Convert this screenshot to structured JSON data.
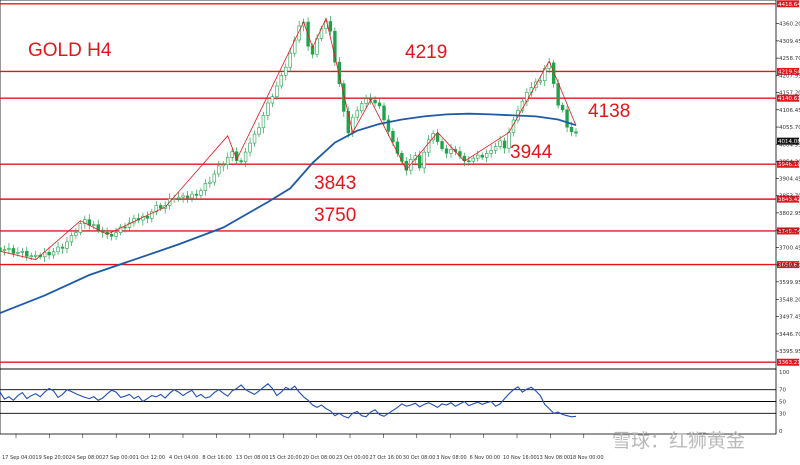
{
  "title": "GOLD H4",
  "annotations": [
    "4219",
    "4138",
    "3944",
    "3843",
    "3750"
  ],
  "watermark": "雪球：红狮黄金",
  "colors": {
    "line": "#e4161b",
    "ma": "#1f5aa6",
    "candle": "#1fa34a",
    "rsi": "#1f4fb5"
  },
  "chart_data": [
    {
      "type": "candlestick",
      "title": "GOLD H4",
      "x_labels": [
        "17 Sep 04:00",
        "19 Sep 20:00",
        "24 Sep 08:00",
        "27 Sep 00:00",
        "1 Oct 12:00",
        "4 Oct 04:00",
        "8 Oct 16:00",
        "13 Oct 08:00",
        "15 Oct 20:00",
        "20 Oct 08:00",
        "23 Oct 00:00",
        "27 Oct 16:00",
        "30 Oct 08:00",
        "3 Nov 08:00",
        "6 Nov 00:00",
        "10 Nov 16:00",
        "13 Nov 08:00",
        "18 Nov 00:00"
      ],
      "y_ticks": [
        "4360.20",
        "4309.45",
        "4258.70",
        "4207.95",
        "4157.20",
        "4106.45",
        "4055.70",
        "4004.95",
        "3954.20",
        "3904.45",
        "3853.70",
        "3802.95",
        "3752.20",
        "3700.45",
        "3649.70",
        "3599.95",
        "3548.20",
        "3497.45",
        "3446.70",
        "3395.95",
        "3346.20"
      ],
      "ylim": [
        3346.2,
        4418.0
      ],
      "horizontal_levels": [
        {
          "value": 4418.64,
          "tag": "4418.64"
        },
        {
          "value": 4219.54,
          "tag": "4219.54"
        },
        {
          "value": 4140.61,
          "tag": "4140.61"
        },
        {
          "value": 3946.18,
          "tag": "3946.18"
        },
        {
          "value": 3843.42,
          "tag": "3843.42"
        },
        {
          "value": 3749.74,
          "tag": "3749.74"
        },
        {
          "value": 3650.67,
          "tag": "3650.67"
        },
        {
          "value": 3363.21,
          "tag": "3363.21"
        }
      ],
      "current_price": {
        "value": 4014.08,
        "tag": "4014.08"
      },
      "close_path": [
        [
          0,
          3700
        ],
        [
          3,
          3690
        ],
        [
          6,
          3680
        ],
        [
          8,
          3670
        ],
        [
          10,
          3684
        ],
        [
          12,
          3690
        ],
        [
          14,
          3705
        ],
        [
          16,
          3730
        ],
        [
          18,
          3770
        ],
        [
          19,
          3775
        ],
        [
          20,
          3770
        ],
        [
          22,
          3760
        ],
        [
          24,
          3735
        ],
        [
          26,
          3745
        ],
        [
          28,
          3765
        ],
        [
          31,
          3785
        ],
        [
          33,
          3795
        ],
        [
          35,
          3820
        ],
        [
          37,
          3825
        ],
        [
          39,
          3850
        ],
        [
          41,
          3845
        ],
        [
          43,
          3855
        ],
        [
          45,
          3870
        ],
        [
          47,
          3900
        ],
        [
          49,
          3935
        ],
        [
          51,
          3965
        ],
        [
          52,
          3975
        ],
        [
          53,
          3960
        ],
        [
          54,
          3950
        ],
        [
          55,
          3990
        ],
        [
          57,
          4030
        ],
        [
          59,
          4090
        ],
        [
          61,
          4150
        ],
        [
          63,
          4200
        ],
        [
          65,
          4270
        ],
        [
          66,
          4320
        ],
        [
          67,
          4355
        ],
        [
          68,
          4360
        ],
        [
          69,
          4300
        ],
        [
          70,
          4270
        ],
        [
          71,
          4310
        ],
        [
          72,
          4350
        ],
        [
          73,
          4365
        ],
        [
          74,
          4330
        ],
        [
          75,
          4250
        ],
        [
          76,
          4180
        ],
        [
          77,
          4110
        ],
        [
          78,
          4040
        ],
        [
          79,
          4080
        ],
        [
          80,
          4110
        ],
        [
          81,
          4125
        ],
        [
          83,
          4140
        ],
        [
          85,
          4110
        ],
        [
          86,
          4080
        ],
        [
          87,
          4040
        ],
        [
          88,
          4020
        ],
        [
          89,
          3980
        ],
        [
          90,
          3950
        ],
        [
          91,
          3935
        ],
        [
          92,
          3960
        ],
        [
          93,
          3965
        ],
        [
          94,
          3940
        ],
        [
          95,
          3980
        ],
        [
          96,
          4010
        ],
        [
          97,
          4040
        ],
        [
          98,
          4010
        ],
        [
          99,
          4000
        ],
        [
          100,
          3980
        ],
        [
          102,
          3990
        ],
        [
          103,
          3970
        ],
        [
          104,
          3950
        ],
        [
          105,
          3960
        ],
        [
          107,
          3965
        ],
        [
          109,
          3975
        ],
        [
          110,
          3995
        ],
        [
          111,
          4000
        ],
        [
          112,
          4010
        ],
        [
          113,
          4000
        ],
        [
          114,
          4040
        ],
        [
          115,
          4070
        ],
        [
          116,
          4110
        ],
        [
          117,
          4130
        ],
        [
          118,
          4150
        ],
        [
          119,
          4175
        ],
        [
          120,
          4185
        ],
        [
          121,
          4200
        ],
        [
          122,
          4230
        ],
        [
          123,
          4240
        ],
        [
          124,
          4190
        ],
        [
          125,
          4120
        ],
        [
          126,
          4100
        ],
        [
          127,
          4060
        ],
        [
          128,
          4040
        ],
        [
          129,
          4030
        ]
      ],
      "ma_path": [
        [
          0,
          3508
        ],
        [
          10,
          3560
        ],
        [
          20,
          3620
        ],
        [
          30,
          3665
        ],
        [
          40,
          3710
        ],
        [
          50,
          3760
        ],
        [
          60,
          3835
        ],
        [
          65,
          3875
        ],
        [
          70,
          3950
        ],
        [
          75,
          4010
        ],
        [
          80,
          4045
        ],
        [
          85,
          4065
        ],
        [
          90,
          4078
        ],
        [
          95,
          4087
        ],
        [
          100,
          4093
        ],
        [
          105,
          4095
        ],
        [
          110,
          4093
        ],
        [
          115,
          4090
        ],
        [
          120,
          4087
        ],
        [
          125,
          4078
        ],
        [
          129,
          4061
        ]
      ],
      "zigzag": [
        [
          0,
          3690
        ],
        [
          8,
          3665
        ],
        [
          18,
          3780
        ],
        [
          24,
          3740
        ],
        [
          32,
          3790
        ],
        [
          37,
          3820
        ],
        [
          51,
          4030
        ],
        [
          53,
          3960
        ],
        [
          68,
          4365
        ],
        [
          70,
          4290
        ],
        [
          73,
          4375
        ],
        [
          79,
          4040
        ],
        [
          83,
          4135
        ],
        [
          91,
          3930
        ],
        [
          98,
          4040
        ],
        [
          104,
          3955
        ],
        [
          114,
          4040
        ],
        [
          123,
          4250
        ],
        [
          129,
          4060
        ]
      ]
    },
    {
      "type": "line",
      "title": "",
      "y_ticks": [
        "100",
        "70",
        "50",
        "30",
        "0"
      ],
      "ylim": [
        0,
        100
      ],
      "levels": [
        70,
        50,
        30
      ],
      "x_labels": [
        "17 Sep 04:00",
        "19 Sep 20:00",
        "24 Sep 08:00",
        "27 Sep 00:00",
        "1 Oct 12:00",
        "4 Oct 04:00",
        "8 Oct 16:00",
        "13 Oct 08:00",
        "15 Oct 20:00",
        "20 Oct 08:00",
        "23 Oct 00:00",
        "27 Oct 16:00",
        "30 Oct 08:00",
        "3 Nov 08:00",
        "6 Nov 00:00",
        "10 Nov 16:00",
        "13 Nov 08:00",
        "18 Nov 00:00"
      ],
      "values": [
        66,
        54,
        58,
        52,
        60,
        65,
        55,
        60,
        63,
        58,
        66,
        72,
        68,
        57,
        62,
        70,
        67,
        63,
        60,
        57,
        55,
        58,
        52,
        56,
        63,
        69,
        66,
        57,
        59,
        62,
        55,
        59,
        50,
        55,
        60,
        58,
        62,
        56,
        64,
        70,
        66,
        60,
        65,
        69,
        58,
        62,
        56,
        58,
        65,
        70,
        64,
        59,
        68,
        72,
        78,
        70,
        66,
        62,
        68,
        74,
        80,
        72,
        60,
        66,
        74,
        70,
        76,
        66,
        58,
        52,
        44,
        40,
        44,
        38,
        34,
        26,
        30,
        25,
        22,
        30,
        33,
        26,
        24,
        32,
        36,
        28,
        25,
        30,
        35,
        40,
        46,
        42,
        44,
        47,
        41,
        45,
        48,
        44,
        40,
        46,
        44,
        48,
        42,
        46,
        50,
        43,
        46,
        49,
        45,
        48,
        50,
        42,
        46,
        55,
        63,
        70,
        75,
        66,
        71,
        74,
        68,
        60,
        45,
        38,
        30,
        32,
        28,
        26,
        24,
        25
      ]
    }
  ]
}
